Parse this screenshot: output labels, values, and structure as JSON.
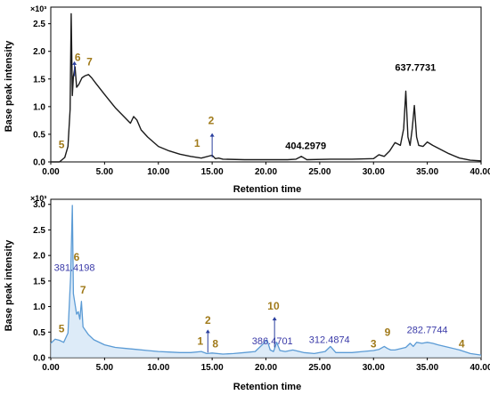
{
  "chart_data": [
    {
      "type": "line",
      "multiplier": "×10³",
      "xlabel": "Retention time",
      "ylabel": "Base peak intensity",
      "xlim": [
        0,
        40
      ],
      "ylim": [
        0,
        2.8
      ],
      "x_ticks": [
        "0.00",
        "5.00",
        "10.00",
        "15.00",
        "20.00",
        "25.00",
        "30.00",
        "35.00",
        "40.00"
      ],
      "y_ticks": [
        "0.0",
        "0.5",
        "1.0",
        "1.5",
        "2.0",
        "2.5"
      ],
      "line_color": "#1a1a1a",
      "series": [
        {
          "x": [
            0,
            0.8,
            1.3,
            1.6,
            1.8,
            1.9,
            2.0,
            2.1,
            2.25,
            2.4,
            2.6,
            2.9,
            3.2,
            3.5,
            3.8,
            4.2,
            5,
            6,
            7,
            7.4,
            7.7,
            8.0,
            8.4,
            9,
            10,
            11,
            12,
            13,
            14,
            15,
            15.3,
            15.6,
            16,
            18,
            20,
            22,
            22.8,
            23.3,
            23.8,
            26,
            28,
            30,
            30.5,
            31,
            31.5,
            32,
            32.5,
            32.8,
            33.0,
            33.2,
            33.4,
            33.6,
            33.8,
            34.0,
            34.2,
            34.6,
            35,
            35.5,
            36,
            37,
            38,
            39,
            40
          ],
          "y": [
            0.0,
            0.0,
            0.08,
            0.28,
            0.95,
            2.68,
            1.2,
            1.55,
            1.72,
            1.35,
            1.4,
            1.52,
            1.56,
            1.58,
            1.52,
            1.42,
            1.22,
            0.98,
            0.78,
            0.7,
            0.82,
            0.76,
            0.58,
            0.45,
            0.28,
            0.2,
            0.14,
            0.1,
            0.07,
            0.12,
            0.06,
            0.07,
            0.05,
            0.04,
            0.04,
            0.04,
            0.05,
            0.1,
            0.04,
            0.05,
            0.05,
            0.06,
            0.13,
            0.1,
            0.2,
            0.35,
            0.3,
            0.6,
            1.28,
            0.45,
            0.3,
            0.6,
            1.02,
            0.45,
            0.3,
            0.28,
            0.36,
            0.3,
            0.25,
            0.15,
            0.07,
            0.03,
            0.02
          ]
        }
      ],
      "annotations": [
        {
          "text": "5",
          "x": 1.0,
          "y": 0.25,
          "kind": "num"
        },
        {
          "text": "6",
          "x": 2.5,
          "y": 1.83,
          "kind": "num"
        },
        {
          "text": "7",
          "x": 3.6,
          "y": 1.75,
          "kind": "num"
        },
        {
          "text": "1",
          "x": 13.6,
          "y": 0.27,
          "kind": "num"
        },
        {
          "text": "2",
          "x": 14.9,
          "y": 0.68,
          "kind": "num"
        },
        {
          "text": "404.2979",
          "x": 23.7,
          "y": 0.23,
          "kind": "mz"
        },
        {
          "text": "637.7731",
          "x": 33.9,
          "y": 1.65,
          "kind": "mz"
        }
      ]
    },
    {
      "type": "line",
      "multiplier": "×10³",
      "xlabel": "Retention time",
      "ylabel": "Base peak intensity",
      "xlim": [
        0,
        40
      ],
      "ylim": [
        0,
        3.1
      ],
      "x_ticks": [
        "0.00",
        "5.00",
        "10.00",
        "15.00",
        "20.00",
        "25.00",
        "30.00",
        "35.00",
        "40.00"
      ],
      "y_ticks": [
        "0.0",
        "0.5",
        "1.0",
        "1.5",
        "2.0",
        "2.5",
        "3.0"
      ],
      "line_color": "#5b9bd5",
      "series": [
        {
          "x": [
            0,
            0.4,
            0.8,
            1.2,
            1.6,
            1.85,
            2.0,
            2.1,
            2.25,
            2.4,
            2.55,
            2.7,
            2.85,
            3.0,
            3.5,
            4,
            5,
            6,
            7,
            8,
            9,
            10,
            11,
            12,
            13,
            14,
            14.5,
            15,
            16,
            17,
            18,
            19,
            19.8,
            20.1,
            20.4,
            20.7,
            21,
            21.3,
            21.8,
            22.5,
            23.5,
            24.5,
            25.5,
            26,
            26.5,
            28,
            29,
            30,
            30.5,
            31,
            31.3,
            31.6,
            32,
            33,
            33.4,
            33.7,
            34,
            34.5,
            35,
            35.5,
            36,
            37,
            38,
            39,
            40
          ],
          "y": [
            0.28,
            0.36,
            0.34,
            0.3,
            0.48,
            1.6,
            2.98,
            1.25,
            1.05,
            0.85,
            0.9,
            0.75,
            1.1,
            0.6,
            0.45,
            0.35,
            0.25,
            0.2,
            0.18,
            0.16,
            0.14,
            0.12,
            0.11,
            0.1,
            0.1,
            0.12,
            0.08,
            0.09,
            0.07,
            0.08,
            0.1,
            0.12,
            0.28,
            0.35,
            0.15,
            0.12,
            0.3,
            0.14,
            0.12,
            0.15,
            0.1,
            0.08,
            0.12,
            0.22,
            0.1,
            0.1,
            0.12,
            0.14,
            0.16,
            0.22,
            0.18,
            0.15,
            0.15,
            0.2,
            0.28,
            0.22,
            0.3,
            0.28,
            0.3,
            0.28,
            0.25,
            0.2,
            0.15,
            0.08,
            0.05
          ]
        }
      ],
      "annotations": [
        {
          "text": "5",
          "x": 1.0,
          "y": 0.5,
          "kind": "num"
        },
        {
          "text": "6",
          "x": 2.4,
          "y": 1.9,
          "kind": "num"
        },
        {
          "text": "381.4198",
          "x": 2.2,
          "y": 1.7,
          "kind": "mz"
        },
        {
          "text": "7",
          "x": 3.0,
          "y": 1.25,
          "kind": "num"
        },
        {
          "text": "1",
          "x": 13.9,
          "y": 0.25,
          "kind": "num"
        },
        {
          "text": "2",
          "x": 14.6,
          "y": 0.66,
          "kind": "num"
        },
        {
          "text": "8",
          "x": 15.3,
          "y": 0.2,
          "kind": "num"
        },
        {
          "text": "10",
          "x": 20.7,
          "y": 0.94,
          "kind": "num"
        },
        {
          "text": "386.4701",
          "x": 20.6,
          "y": 0.26,
          "kind": "mz"
        },
        {
          "text": "312.4874",
          "x": 25.9,
          "y": 0.29,
          "kind": "mz"
        },
        {
          "text": "3",
          "x": 30.0,
          "y": 0.2,
          "kind": "num"
        },
        {
          "text": "9",
          "x": 31.3,
          "y": 0.43,
          "kind": "num"
        },
        {
          "text": "282.7744",
          "x": 35.0,
          "y": 0.48,
          "kind": "mz"
        },
        {
          "text": "4",
          "x": 38.2,
          "y": 0.2,
          "kind": "num"
        }
      ]
    }
  ]
}
